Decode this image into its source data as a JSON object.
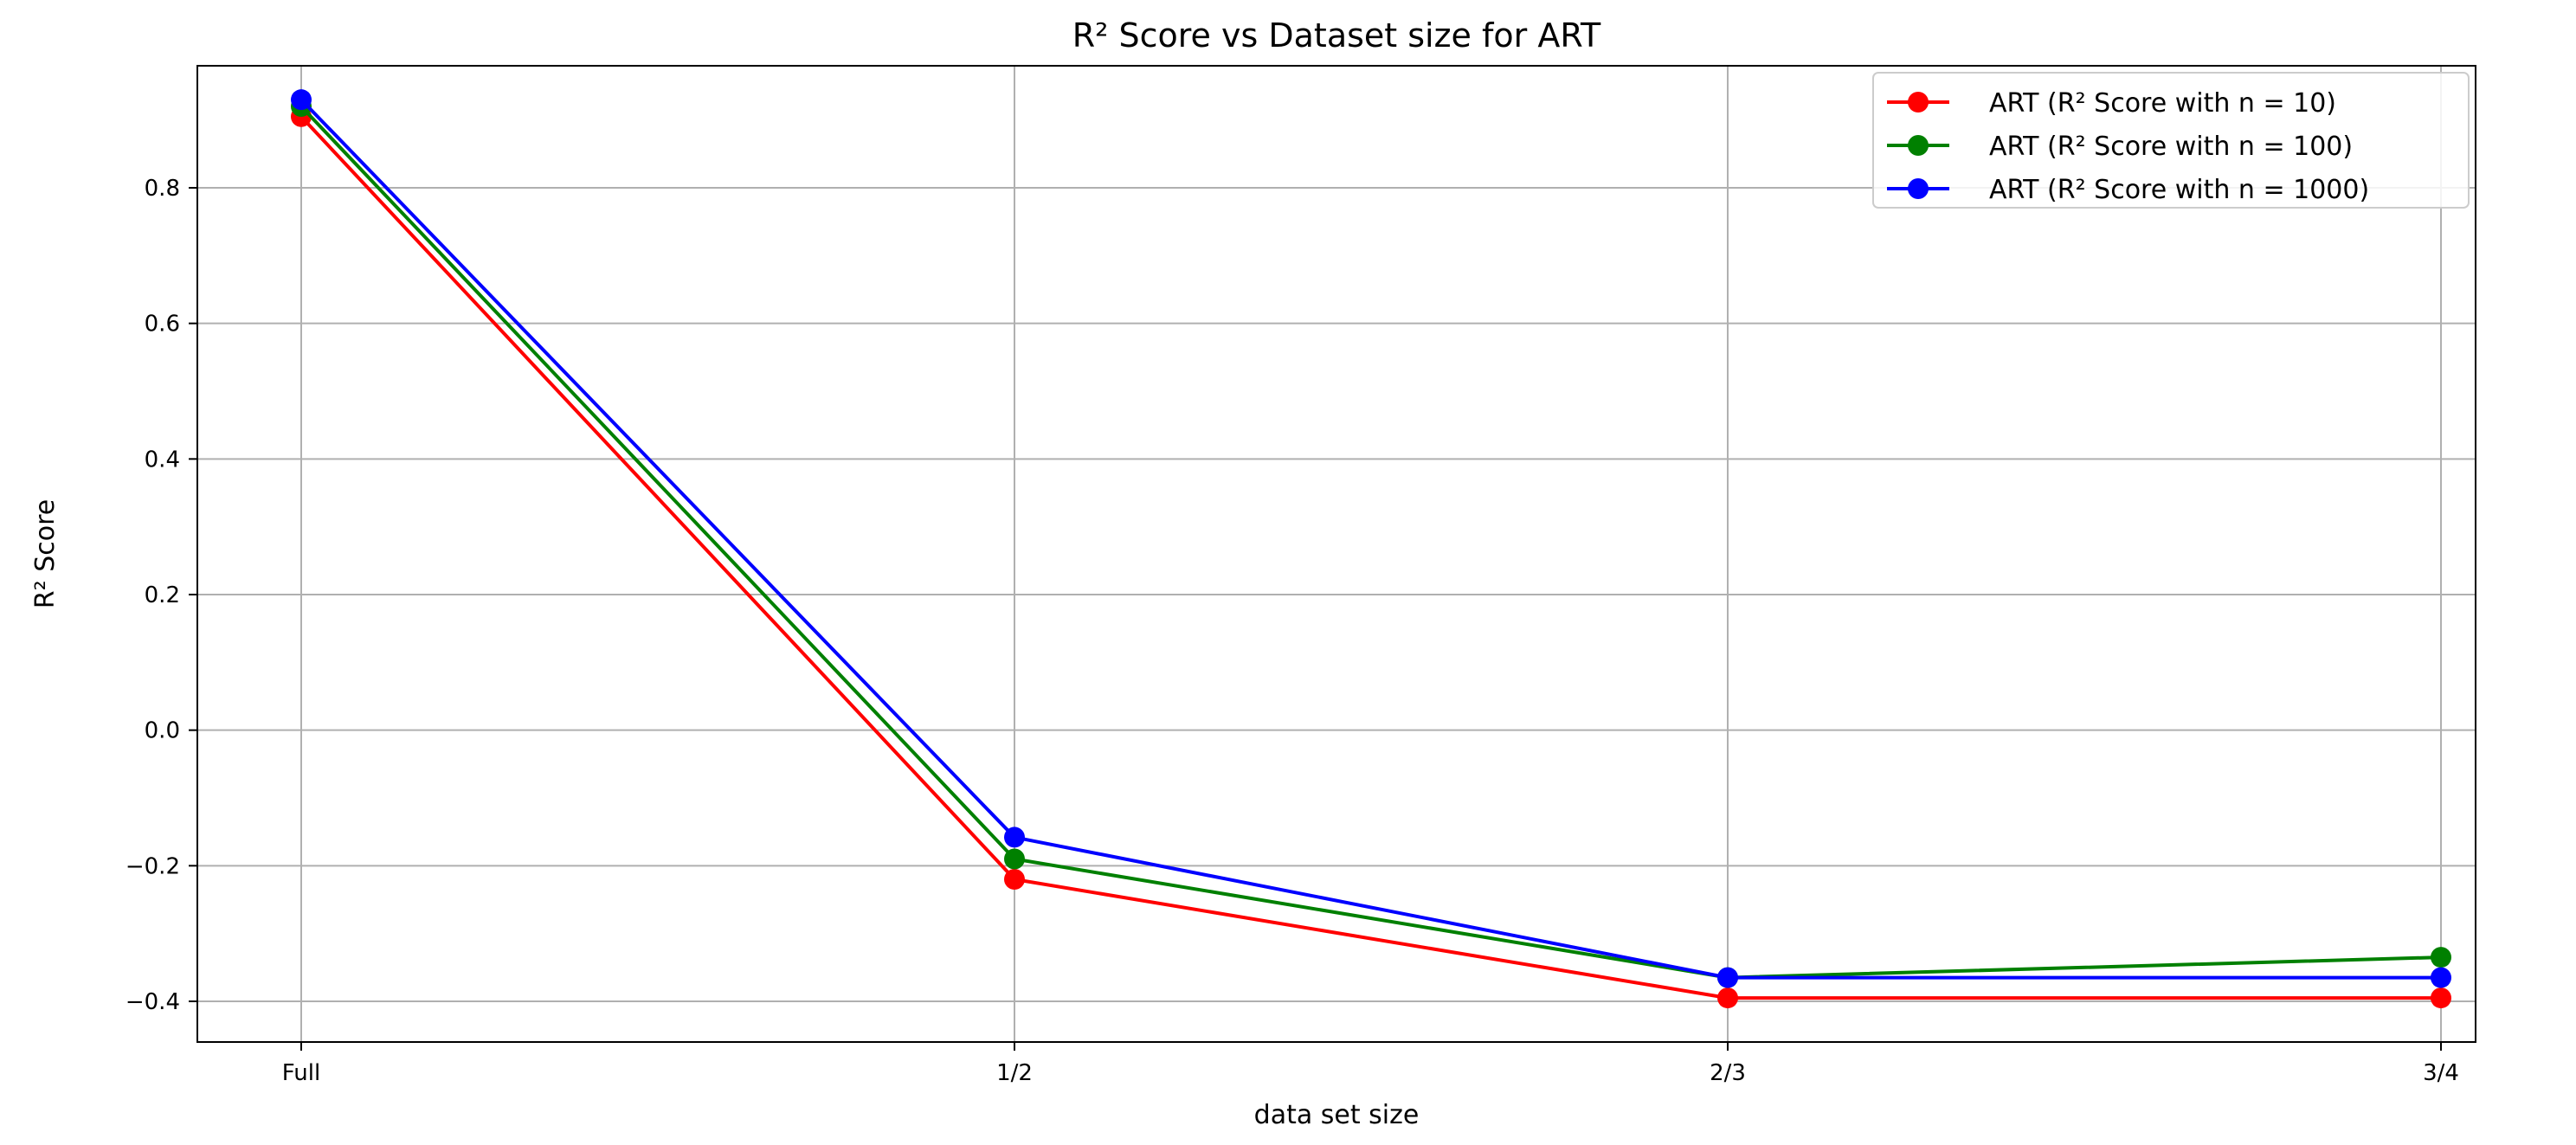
{
  "chart_data": {
    "type": "line",
    "title": "R² Score vs Dataset size for ART",
    "xlabel": "data set size",
    "ylabel": "R² Score",
    "categories": [
      "Full",
      "1/2",
      "2/3",
      "3/4"
    ],
    "ylim": [
      -0.46,
      0.98
    ],
    "yticks": [
      -0.4,
      -0.2,
      0.0,
      0.2,
      0.4,
      0.6,
      0.8
    ],
    "ytick_labels": [
      "−0.4",
      "−0.2",
      "0.0",
      "0.2",
      "0.4",
      "0.6",
      "0.8"
    ],
    "grid": true,
    "legend_position": "top-right",
    "series": [
      {
        "name": "ART (R² Score with n = 10)",
        "color": "#ff0000",
        "values": [
          0.905,
          -0.22,
          -0.395,
          -0.395
        ]
      },
      {
        "name": "ART (R² Score with n = 100)",
        "color": "#008000",
        "values": [
          0.92,
          -0.19,
          -0.365,
          -0.335
        ]
      },
      {
        "name": "ART (R² Score with n = 1000)",
        "color": "#0000ff",
        "values": [
          0.93,
          -0.158,
          -0.365,
          -0.365
        ]
      }
    ]
  }
}
